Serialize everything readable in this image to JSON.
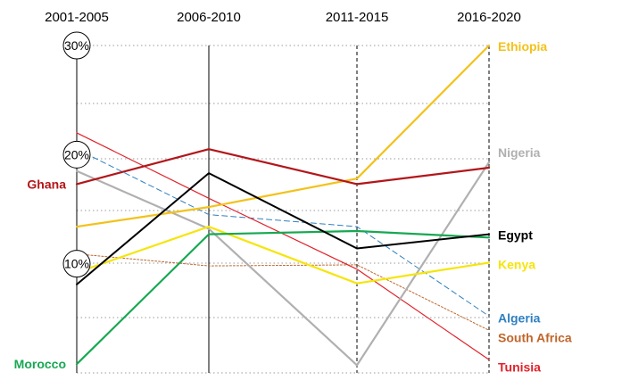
{
  "chart_data": {
    "type": "line",
    "title": "",
    "xlabel": "",
    "ylabel": "",
    "categories": [
      "2001-2005",
      "2006-2010",
      "2011-2015",
      "2016-2020"
    ],
    "ylim": [
      0,
      30
    ],
    "y_markers": [
      {
        "value": 30,
        "label": "30%"
      },
      {
        "value": 20,
        "label": "20%"
      },
      {
        "value": 10,
        "label": "10%"
      }
    ],
    "grid": "dotted horizontal",
    "legend": "direct labels",
    "series": [
      {
        "name": "Ethiopia",
        "values": [
          13.4,
          15.2,
          17.8,
          30.0
        ],
        "color": "#f2c21b",
        "width": 2.2,
        "style": "solid",
        "label_side": "end"
      },
      {
        "name": "Nigeria",
        "values": [
          18.5,
          13.2,
          0.7,
          19.3
        ],
        "color": "#b0b0b0",
        "width": 2.2,
        "style": "solid",
        "label_side": "end"
      },
      {
        "name": "Egypt",
        "values": [
          8.1,
          18.3,
          11.4,
          12.7
        ],
        "color": "#000000",
        "width": 2.0,
        "style": "solid",
        "label_side": "end"
      },
      {
        "name": "Kenya",
        "values": [
          9.2,
          13.4,
          8.2,
          10.1
        ],
        "color": "#f5e50a",
        "width": 2.2,
        "style": "solid",
        "label_side": "end"
      },
      {
        "name": "Algeria",
        "values": [
          20.5,
          14.5,
          13.4,
          5.2
        ],
        "color": "#2e7fc0",
        "width": 1.0,
        "style": "dashed",
        "label_side": "end"
      },
      {
        "name": "South Africa",
        "values": [
          10.9,
          9.8,
          9.9,
          3.9
        ],
        "color": "#c0662b",
        "width": 1.0,
        "style": "dotted",
        "label_side": "end"
      },
      {
        "name": "Tunisia",
        "values": [
          22.0,
          16.0,
          9.5,
          1.2
        ],
        "color": "#e0232b",
        "width": 1.2,
        "style": "solid",
        "label_side": "end"
      },
      {
        "name": "Ghana",
        "values": [
          17.3,
          20.5,
          17.3,
          18.8
        ],
        "color": "#b2161a",
        "width": 2.2,
        "style": "solid",
        "label_side": "start"
      },
      {
        "name": "Morocco",
        "values": [
          0.8,
          12.7,
          13.0,
          12.4
        ],
        "color": "#17a852",
        "width": 2.2,
        "style": "solid",
        "label_side": "start"
      }
    ]
  }
}
